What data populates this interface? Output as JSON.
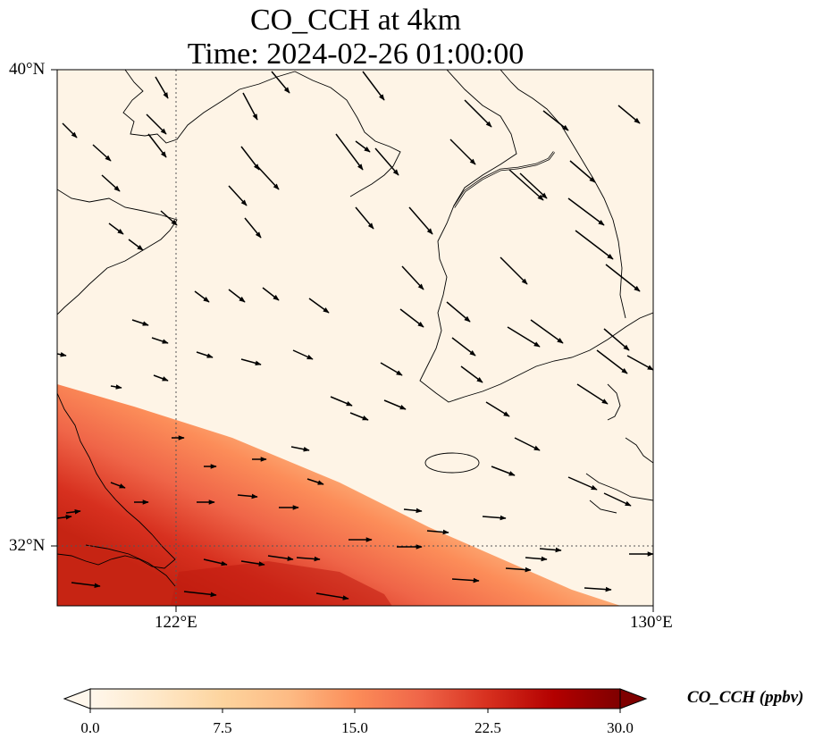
{
  "title": {
    "line1": "CO_CCH at 4km",
    "line2": "Time: 2024-02-26 01:00:00"
  },
  "map": {
    "lat_range": [
      31.0,
      40.0
    ],
    "lon_range": [
      120.0,
      130.0
    ],
    "gridline_lat": [
      32.0
    ],
    "gridline_lon": [
      122.0
    ],
    "lat_tick_labels": [
      "40°N",
      "32°N"
    ],
    "lon_tick_labels": [
      "122°E",
      "130°E"
    ],
    "field": "CO_CCH",
    "field_pattern": "Concentration is near 0 ppbv over most of the domain, rising in a band toward the south-west corner to about 25 ppbv near 123°E, 31°N.",
    "wind_vectors": "Arrows point toward the south-east north of about 33°N and toward the east south of it."
  },
  "colorbar": {
    "label": "CO_CCH (ppbv)",
    "ticks": [
      "0.0",
      "7.5",
      "15.0",
      "22.5",
      "30.0"
    ],
    "tick_values": [
      0.0,
      7.5,
      15.0,
      22.5,
      30.0
    ],
    "range": [
      0.0,
      30.0
    ],
    "colormap": "OrRd",
    "colors": [
      "#fff7ec",
      "#fee8c8",
      "#fdd49e",
      "#fdbb84",
      "#fc8d59",
      "#ef6548",
      "#d7301f",
      "#b30000",
      "#7f0000"
    ]
  }
}
